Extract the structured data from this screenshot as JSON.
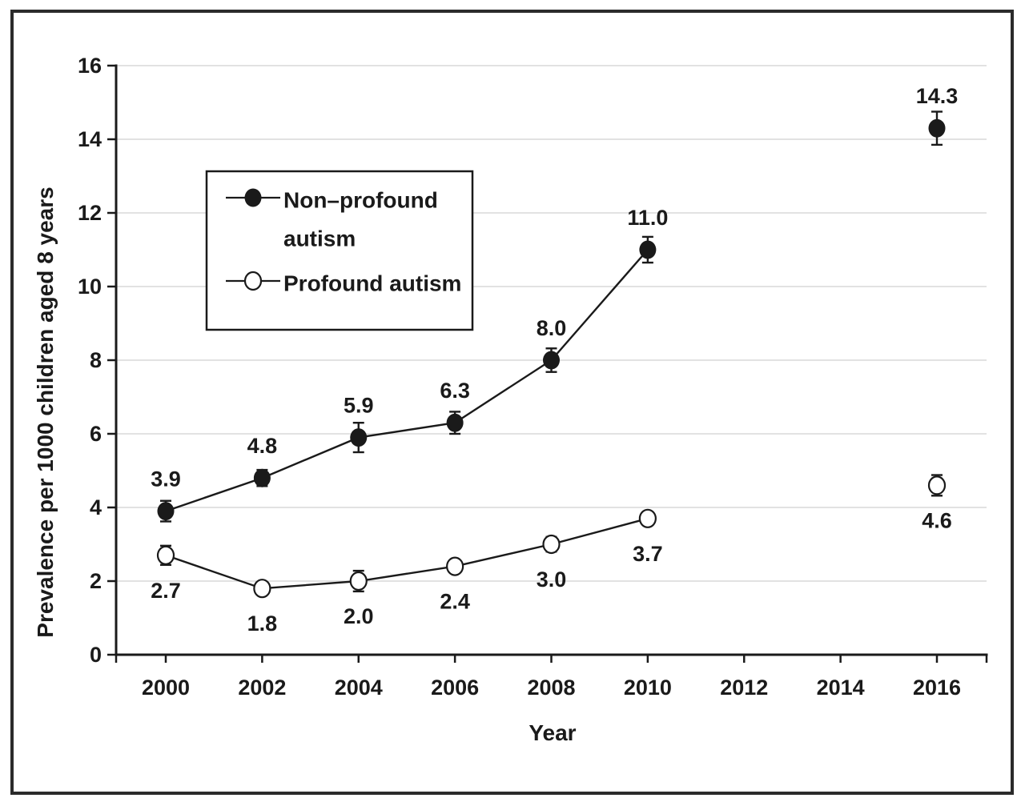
{
  "figure": {
    "background": "#ffffff",
    "frame_color": "#2b2b2b",
    "ink_color": "#1a1a1a"
  },
  "chart_data": {
    "type": "line",
    "title": "",
    "xlabel": "Year",
    "ylabel": "Prevalence per 1000 children aged 8 years",
    "x_tick_values": [
      2000,
      2002,
      2004,
      2006,
      2008,
      2010,
      2012,
      2014,
      2016
    ],
    "x_tick_labels": [
      "2000",
      "2002",
      "2004",
      "2006",
      "2008",
      "2010",
      "2012",
      "2014",
      "2016"
    ],
    "ylim": [
      0,
      16
    ],
    "y_ticks": [
      0,
      2,
      4,
      6,
      8,
      10,
      12,
      14,
      16
    ],
    "y_tick_labels": [
      "0",
      "2",
      "4",
      "6",
      "8",
      "10",
      "12",
      "14",
      "16"
    ],
    "grid": {
      "horizontal": true,
      "vertical": false,
      "color": "#d9d9d9"
    },
    "legend_position": "upper-left-box",
    "legend": {
      "entries": [
        {
          "label": "Non–profound autism",
          "lines": [
            "Non–profound",
            "autism"
          ],
          "marker": "filled-circle"
        },
        {
          "label": "Profound autism",
          "lines": [
            "Profound autism"
          ],
          "marker": "open-circle"
        }
      ]
    },
    "series": [
      {
        "name": "Non–profound autism",
        "marker": "filled-circle",
        "label_side": "above",
        "points": [
          {
            "x": 2000,
            "y": 3.9,
            "label": "3.9",
            "err": 0.28
          },
          {
            "x": 2002,
            "y": 4.8,
            "label": "4.8",
            "err": 0.22
          },
          {
            "x": 2004,
            "y": 5.9,
            "label": "5.9",
            "err": 0.4
          },
          {
            "x": 2006,
            "y": 6.3,
            "label": "6.3",
            "err": 0.3
          },
          {
            "x": 2008,
            "y": 8.0,
            "label": "8.0",
            "err": 0.32
          },
          {
            "x": 2010,
            "y": 11.0,
            "label": "11.0",
            "err": 0.35
          },
          {
            "x": 2016,
            "y": 14.3,
            "label": "14.3",
            "err": 0.45
          }
        ]
      },
      {
        "name": "Profound autism",
        "marker": "open-circle",
        "label_side": "below",
        "points": [
          {
            "x": 2000,
            "y": 2.7,
            "label": "2.7",
            "err": 0.26
          },
          {
            "x": 2002,
            "y": 1.8,
            "label": "1.8",
            "err": 0.16
          },
          {
            "x": 2004,
            "y": 2.0,
            "label": "2.0",
            "err": 0.28
          },
          {
            "x": 2006,
            "y": 2.4,
            "label": "2.4",
            "err": 0.15
          },
          {
            "x": 2008,
            "y": 3.0,
            "label": "3.0",
            "err": 0.2
          },
          {
            "x": 2010,
            "y": 3.7,
            "label": "3.7",
            "err": 0.15
          },
          {
            "x": 2016,
            "y": 4.6,
            "label": "4.6",
            "err": 0.28
          }
        ]
      }
    ]
  }
}
